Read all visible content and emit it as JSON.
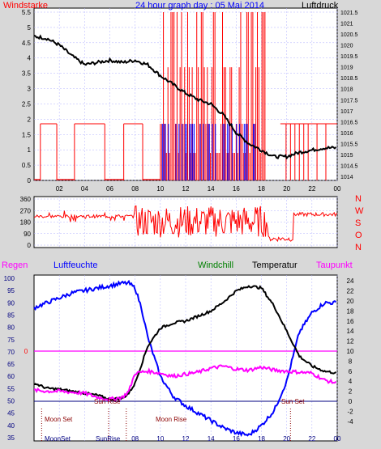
{
  "title": "24 hour graph day : 05 Mai 2014",
  "colors": {
    "panel_bg": "#ffffff",
    "outer_bg": "#d8d8d8",
    "wind_gust": "#ff0000",
    "wind_avg": "#0000ff",
    "pressure": "#000000",
    "direction": "#ff0000",
    "humidity": "#0000ff",
    "temperature": "#000000",
    "dewpoint": "#ff00ff",
    "windchill": "#008000",
    "rain": "#ff0000",
    "zero_line": "#ff00ff"
  },
  "labels": {
    "windstarke": "Windstarke",
    "luftdruck": "Luftdruck",
    "regen": "Regen",
    "luftfeuchte": "Luftfeuchte",
    "windchill": "Windchill",
    "temperatur": "Temperatur",
    "taupunkt": "Taupunkt",
    "compass": [
      "N",
      "W",
      "S",
      "O",
      "N"
    ],
    "events": {
      "moon_set": "Moon Set",
      "sun_rise": "Sun Rise",
      "moon_rise": "Moon Rise",
      "sun_set": "Sun Set",
      "moon_set_short": "MoonSet",
      "sun_rise_short": "SunRise"
    },
    "rain_zero": "0"
  },
  "chart_data": [
    {
      "type": "line",
      "name": "wind-pressure",
      "x_ticks": [
        "02",
        "04",
        "06",
        "08",
        "10",
        "12",
        "14",
        "16",
        "18",
        "20",
        "22",
        "00"
      ],
      "y_left": {
        "label": "Windstarke",
        "ticks": [
          "0",
          "0.5",
          "1",
          "1.5",
          "2",
          "2.5",
          "3",
          "3.5",
          "4",
          "4.5",
          "5",
          "5.5"
        ],
        "range": [
          0,
          5.5
        ]
      },
      "y_right": {
        "label": "Luftdruck",
        "ticks": [
          "1014",
          "1014.5",
          "1015",
          "1015.5",
          "1016",
          "1016.5",
          "1017",
          "1017.5",
          "1018",
          "1018.5",
          "1019",
          "1019.5",
          "1020",
          "1020.5",
          "1021",
          "1021.5"
        ],
        "range": [
          1014,
          1021.5
        ]
      },
      "pressure": {
        "x": [
          0,
          1,
          2,
          3,
          4,
          5,
          6,
          7,
          8,
          9,
          10,
          11,
          12,
          13,
          14,
          15,
          16,
          17,
          18,
          19,
          20,
          21,
          22,
          23,
          24
        ],
        "y": [
          1020.4,
          1020.3,
          1020.0,
          1019.5,
          1019.1,
          1019.2,
          1019.3,
          1019.2,
          1019.3,
          1019.1,
          1018.6,
          1018.2,
          1017.8,
          1017.5,
          1017.3,
          1016.8,
          1016.0,
          1015.5,
          1015.2,
          1014.9,
          1014.9,
          1015.1,
          1015.2,
          1015.3,
          1015.3
        ]
      },
      "wind_bars_hours": [
        0.5,
        1.8,
        3.2,
        5.6,
        7.1,
        8.6
      ],
      "wind_dense_range": [
        10,
        18.3
      ]
    },
    {
      "type": "line",
      "name": "wind-direction",
      "x_ticks": [
        "02",
        "04",
        "06",
        "08",
        "10",
        "12",
        "14",
        "16",
        "18",
        "20",
        "22",
        "00"
      ],
      "y_left": {
        "ticks": [
          "0",
          "90",
          "180",
          "270",
          "360"
        ],
        "range": [
          0,
          360
        ]
      },
      "y_right": {
        "ticks": [
          "N",
          "W",
          "S",
          "O",
          "N"
        ]
      }
    },
    {
      "type": "line",
      "name": "weather",
      "x_ticks": [
        "10",
        "12",
        "14",
        "16",
        "18",
        "20",
        "22",
        "00"
      ],
      "y_left": {
        "label": "Luftfeuchte",
        "ticks": [
          "35",
          "40",
          "45",
          "50",
          "55",
          "60",
          "65",
          "70",
          "75",
          "80",
          "85",
          "90",
          "95",
          "100"
        ],
        "range": [
          35,
          100
        ]
      },
      "y_right": {
        "ticks": [
          "-4",
          "-2",
          "0",
          "2",
          "4",
          "6",
          "8",
          "10",
          "12",
          "14",
          "16",
          "18",
          "20",
          "22",
          "24"
        ],
        "range": [
          -5,
          25
        ]
      },
      "humidity": {
        "x": [
          0,
          1,
          2,
          3,
          4,
          5,
          6,
          7,
          7.5,
          8,
          8.5,
          9,
          10,
          11,
          12,
          13,
          14,
          15,
          16,
          17,
          18,
          19,
          20,
          21,
          22,
          23,
          24
        ],
        "y": [
          88,
          90,
          92,
          94,
          95,
          96,
          97,
          98,
          98,
          96,
          88,
          76,
          60,
          52,
          48,
          45,
          42,
          39,
          37,
          36,
          40,
          46,
          58,
          78,
          86,
          90,
          90
        ]
      },
      "temperature": {
        "x": [
          0,
          1,
          2,
          3,
          4,
          5,
          6,
          7,
          7.5,
          8,
          9,
          10,
          11,
          12,
          13,
          14,
          15,
          16,
          17,
          18,
          19,
          20,
          21,
          22,
          23,
          24
        ],
        "y": [
          3.6,
          2.6,
          2.4,
          2.0,
          1.6,
          1.2,
          0.4,
          0.6,
          1.6,
          3.6,
          11.0,
          14.6,
          15.6,
          16.0,
          17.0,
          18.0,
          19.8,
          22.0,
          23.0,
          22.6,
          19.0,
          14.0,
          9.0,
          7.0,
          6.0,
          5.6
        ]
      },
      "dewpoint": {
        "x": [
          0,
          1,
          2,
          3,
          4,
          5,
          6,
          7,
          7.5,
          8,
          9,
          10,
          11,
          12,
          13,
          14,
          15,
          16,
          17,
          18,
          19,
          20,
          21,
          22,
          23,
          24
        ],
        "y": [
          2.2,
          2.0,
          2.0,
          1.8,
          1.6,
          0.8,
          0.4,
          0.8,
          2.0,
          5.6,
          6.0,
          5.6,
          5.0,
          5.4,
          5.8,
          6.6,
          7.0,
          6.4,
          6.2,
          6.8,
          6.2,
          6.0,
          5.8,
          5.6,
          4.2,
          3.6
        ]
      }
    }
  ]
}
